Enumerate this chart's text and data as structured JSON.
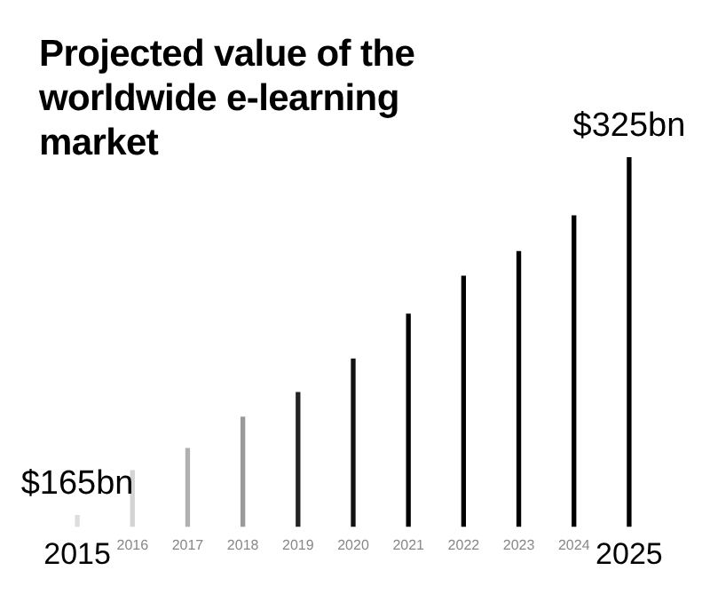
{
  "chart_data": {
    "type": "bar",
    "title": "Projected value of the worldwide e-learning market",
    "categories": [
      "2015",
      "2016",
      "2017",
      "2018",
      "2019",
      "2020",
      "2021",
      "2022",
      "2023",
      "2024",
      "2025"
    ],
    "values": [
      165,
      185,
      195,
      209,
      220,
      235,
      255,
      272,
      283,
      299,
      325
    ],
    "colors": [
      "#dddddd",
      "#d4d4d4",
      "#b0b0b0",
      "#999999",
      "#222222",
      "#111111",
      "#000000",
      "#000000",
      "#000000",
      "#000000",
      "#000000"
    ],
    "value_labels": [
      "$165bn",
      null,
      null,
      null,
      null,
      null,
      null,
      null,
      null,
      null,
      "$325bn"
    ],
    "grid": false,
    "legend": false
  }
}
